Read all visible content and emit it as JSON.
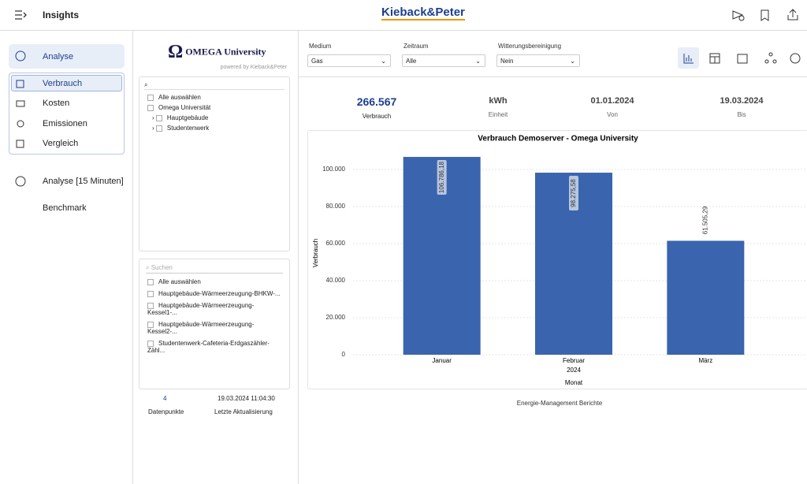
{
  "header": {
    "title": "Insights",
    "brand": "Kieback&Peter"
  },
  "sidebar": {
    "items": [
      "Analyse",
      "Verbrauch",
      "Kosten",
      "Emissionen",
      "Vergleich",
      "Analyse [15 Minuten]",
      "Benchmark"
    ]
  },
  "panel": {
    "logo": "OMEGA University",
    "powered_by": "powered by Kieback&Peter",
    "tree": [
      "Alle auswählen",
      "Omega Universität",
      "Hauptgebäude",
      "Studentenwerk"
    ],
    "search_placeholder": "Suchen",
    "list": [
      "Alle auswählen",
      "Hauptgebäude-Wärmeerzeugung-BHKW-...",
      "Hauptgebäude-Wärmeerzeugung-Kessel1-...",
      "Hauptgebäude-Wärmeerzeugung-Kessel2-...",
      "Studentenwerk-Cafeteria-Erdgaszähler-Zähl..."
    ],
    "stats": [
      {
        "value": 4,
        "label": "Datenpunkte"
      },
      {
        "value": "19.03.2024 11:04:30",
        "label": "Letzte Aktualisierung"
      }
    ]
  },
  "filters": [
    {
      "label": "Medium",
      "value": "Gas"
    },
    {
      "label": "Zeitraum",
      "value": "Alle"
    },
    {
      "label": "Witterungsbereinigung",
      "value": "Nein"
    }
  ],
  "kpis": [
    {
      "value": "266.567",
      "label": "Verbrauch"
    },
    {
      "value": "kWh",
      "label": "Einheit"
    },
    {
      "value": "01.01.2024",
      "label": "Von"
    },
    {
      "value": "19.03.2024",
      "label": "Bis"
    }
  ],
  "chart_data": {
    "type": "bar",
    "title": "Verbrauch Demoserver - Omega University",
    "categories": [
      "Januar",
      "Februar",
      "März"
    ],
    "values": [
      106786.18,
      98275.58,
      61505.29
    ],
    "value_labels": [
      "106.786,18",
      "98.275,58",
      "61.505,29"
    ],
    "color": "#3a64ae",
    "x_sublabel": "2024",
    "x_label": "Monat",
    "y_label": "Verbrauch",
    "ylim": [
      0,
      110000
    ],
    "yticks": [
      0,
      {
        "value": 20000,
        "label": "20.000"
      },
      {
        "value": 40000,
        "label": "40.000"
      },
      {
        "value": 60000,
        "label": "60.000"
      },
      {
        "value": 80000,
        "label": "80.000"
      },
      {
        "value": 100000,
        "label": "100.000"
      }
    ],
    "grid": true
  },
  "footer_text": "Energie-Management Berichte"
}
